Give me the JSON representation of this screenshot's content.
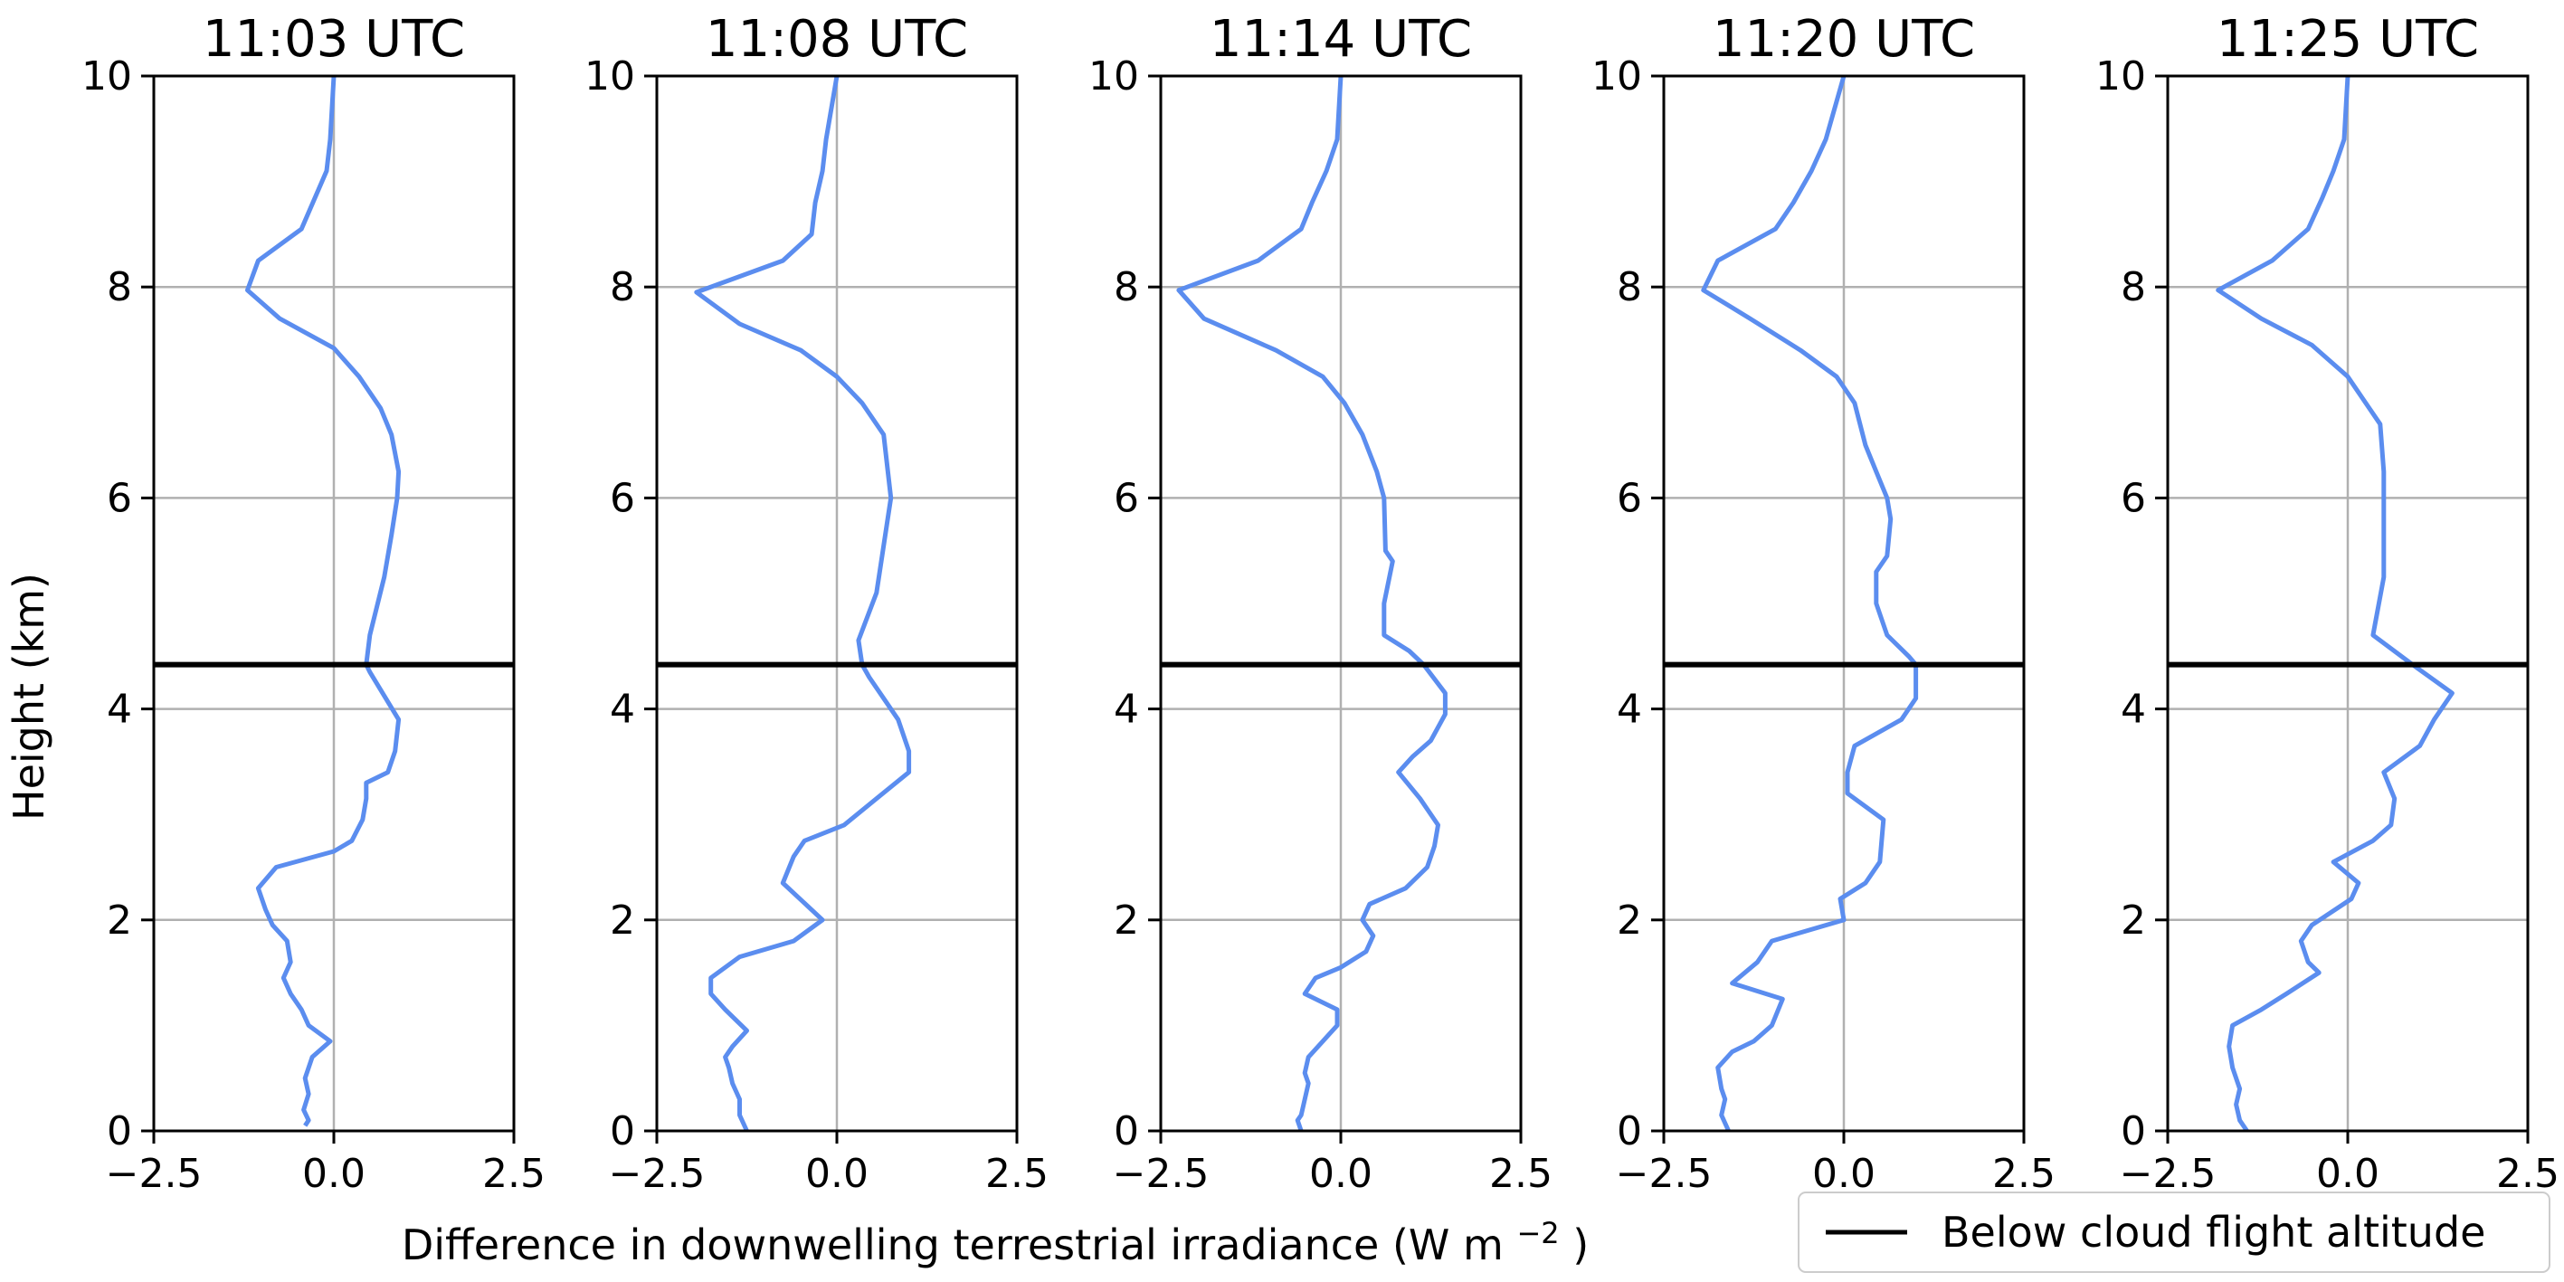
{
  "chart_data": {
    "type": "line",
    "xlabel_main": "Difference in downwelling terrestrial irradiance (W m",
    "xlabel_sup": "−2",
    "xlabel_close": ")",
    "ylabel": "Height (km)",
    "xlim": [
      -2.5,
      2.5
    ],
    "ylim": [
      0,
      10
    ],
    "xticks": [
      -2.5,
      0.0,
      2.5
    ],
    "xtick_labels": [
      "−2.5",
      "0.0",
      "2.5"
    ],
    "yticks": [
      0,
      2,
      4,
      6,
      8,
      10
    ],
    "ytick_labels": [
      "0",
      "2",
      "4",
      "6",
      "8",
      "10"
    ],
    "grid": true,
    "line_color": "#5b8def",
    "ref_color": "#000000",
    "grid_color": "#b0b0b0",
    "legend": {
      "label": "Below cloud flight altitude",
      "placement": "lower-right"
    },
    "panels": [
      {
        "title": "11:03 UTC",
        "cloud_altitude": 4.42,
        "profile": [
          [
            0.0,
            10.0
          ],
          [
            -0.05,
            9.4
          ],
          [
            -0.1,
            9.1
          ],
          [
            -0.45,
            8.55
          ],
          [
            -1.05,
            8.25
          ],
          [
            -1.2,
            7.97
          ],
          [
            -0.75,
            7.7
          ],
          [
            0.0,
            7.42
          ],
          [
            0.35,
            7.15
          ],
          [
            0.65,
            6.85
          ],
          [
            0.8,
            6.6
          ],
          [
            0.9,
            6.25
          ],
          [
            0.88,
            6.0
          ],
          [
            0.8,
            5.65
          ],
          [
            0.7,
            5.25
          ],
          [
            0.5,
            4.7
          ],
          [
            0.45,
            4.42
          ],
          [
            0.5,
            4.35
          ],
          [
            0.9,
            3.9
          ],
          [
            0.85,
            3.6
          ],
          [
            0.75,
            3.4
          ],
          [
            0.45,
            3.3
          ],
          [
            0.45,
            3.15
          ],
          [
            0.4,
            2.95
          ],
          [
            0.25,
            2.75
          ],
          [
            0.0,
            2.65
          ],
          [
            -0.8,
            2.5
          ],
          [
            -1.05,
            2.3
          ],
          [
            -0.95,
            2.1
          ],
          [
            -0.85,
            1.95
          ],
          [
            -0.65,
            1.8
          ],
          [
            -0.6,
            1.6
          ],
          [
            -0.7,
            1.45
          ],
          [
            -0.6,
            1.3
          ],
          [
            -0.45,
            1.15
          ],
          [
            -0.35,
            1.0
          ],
          [
            -0.05,
            0.85
          ],
          [
            -0.3,
            0.7
          ],
          [
            -0.4,
            0.5
          ],
          [
            -0.35,
            0.35
          ],
          [
            -0.42,
            0.2
          ],
          [
            -0.35,
            0.1
          ],
          [
            -0.4,
            0.05
          ]
        ]
      },
      {
        "title": "11:08 UTC",
        "cloud_altitude": 4.42,
        "profile": [
          [
            0.0,
            10.0
          ],
          [
            -0.15,
            9.4
          ],
          [
            -0.2,
            9.1
          ],
          [
            -0.3,
            8.8
          ],
          [
            -0.35,
            8.5
          ],
          [
            -0.75,
            8.25
          ],
          [
            -1.95,
            7.95
          ],
          [
            -1.35,
            7.65
          ],
          [
            -0.5,
            7.4
          ],
          [
            0.0,
            7.15
          ],
          [
            0.35,
            6.9
          ],
          [
            0.65,
            6.6
          ],
          [
            0.75,
            6.0
          ],
          [
            0.55,
            5.1
          ],
          [
            0.3,
            4.65
          ],
          [
            0.35,
            4.42
          ],
          [
            0.45,
            4.3
          ],
          [
            0.85,
            3.9
          ],
          [
            1.0,
            3.6
          ],
          [
            1.0,
            3.4
          ],
          [
            0.55,
            3.15
          ],
          [
            0.1,
            2.9
          ],
          [
            -0.45,
            2.75
          ],
          [
            -0.6,
            2.6
          ],
          [
            -0.75,
            2.35
          ],
          [
            -0.2,
            2.0
          ],
          [
            -0.6,
            1.8
          ],
          [
            -1.35,
            1.65
          ],
          [
            -1.75,
            1.45
          ],
          [
            -1.75,
            1.3
          ],
          [
            -1.55,
            1.15
          ],
          [
            -1.25,
            0.95
          ],
          [
            -1.45,
            0.8
          ],
          [
            -1.55,
            0.7
          ],
          [
            -1.5,
            0.6
          ],
          [
            -1.45,
            0.45
          ],
          [
            -1.35,
            0.3
          ],
          [
            -1.35,
            0.15
          ],
          [
            -1.25,
            0.0
          ]
        ]
      },
      {
        "title": "11:14 UTC",
        "cloud_altitude": 4.42,
        "profile": [
          [
            0.0,
            10.0
          ],
          [
            -0.05,
            9.4
          ],
          [
            -0.2,
            9.1
          ],
          [
            -0.4,
            8.8
          ],
          [
            -0.55,
            8.55
          ],
          [
            -1.15,
            8.25
          ],
          [
            -2.25,
            7.97
          ],
          [
            -1.9,
            7.7
          ],
          [
            -0.9,
            7.4
          ],
          [
            -0.25,
            7.15
          ],
          [
            0.05,
            6.9
          ],
          [
            0.3,
            6.6
          ],
          [
            0.5,
            6.25
          ],
          [
            0.6,
            6.0
          ],
          [
            0.62,
            5.5
          ],
          [
            0.72,
            5.4
          ],
          [
            0.6,
            5.0
          ],
          [
            0.6,
            4.7
          ],
          [
            0.95,
            4.55
          ],
          [
            1.15,
            4.42
          ],
          [
            1.45,
            4.15
          ],
          [
            1.45,
            3.95
          ],
          [
            1.25,
            3.7
          ],
          [
            1.0,
            3.55
          ],
          [
            0.8,
            3.4
          ],
          [
            1.1,
            3.15
          ],
          [
            1.35,
            2.9
          ],
          [
            1.3,
            2.7
          ],
          [
            1.2,
            2.5
          ],
          [
            0.9,
            2.3
          ],
          [
            0.4,
            2.15
          ],
          [
            0.3,
            2.0
          ],
          [
            0.45,
            1.85
          ],
          [
            0.35,
            1.7
          ],
          [
            0.0,
            1.55
          ],
          [
            -0.35,
            1.45
          ],
          [
            -0.5,
            1.3
          ],
          [
            -0.05,
            1.15
          ],
          [
            -0.05,
            1.0
          ],
          [
            -0.25,
            0.85
          ],
          [
            -0.45,
            0.7
          ],
          [
            -0.5,
            0.55
          ],
          [
            -0.45,
            0.45
          ],
          [
            -0.5,
            0.3
          ],
          [
            -0.55,
            0.15
          ],
          [
            -0.6,
            0.1
          ],
          [
            -0.55,
            0.0
          ]
        ]
      },
      {
        "title": "11:20 UTC",
        "cloud_altitude": 4.42,
        "profile": [
          [
            0.0,
            10.0
          ],
          [
            -0.25,
            9.4
          ],
          [
            -0.45,
            9.1
          ],
          [
            -0.7,
            8.8
          ],
          [
            -0.95,
            8.55
          ],
          [
            -1.75,
            8.25
          ],
          [
            -1.95,
            7.97
          ],
          [
            -1.3,
            7.7
          ],
          [
            -0.6,
            7.4
          ],
          [
            -0.1,
            7.15
          ],
          [
            0.15,
            6.9
          ],
          [
            0.3,
            6.5
          ],
          [
            0.45,
            6.25
          ],
          [
            0.6,
            6.0
          ],
          [
            0.65,
            5.8
          ],
          [
            0.6,
            5.45
          ],
          [
            0.45,
            5.3
          ],
          [
            0.45,
            5.0
          ],
          [
            0.6,
            4.7
          ],
          [
            0.9,
            4.5
          ],
          [
            1.0,
            4.42
          ],
          [
            1.0,
            4.1
          ],
          [
            0.8,
            3.9
          ],
          [
            0.15,
            3.65
          ],
          [
            0.05,
            3.4
          ],
          [
            0.05,
            3.2
          ],
          [
            0.55,
            2.95
          ],
          [
            0.5,
            2.55
          ],
          [
            0.3,
            2.35
          ],
          [
            -0.05,
            2.2
          ],
          [
            0.0,
            2.0
          ],
          [
            -1.0,
            1.8
          ],
          [
            -1.2,
            1.6
          ],
          [
            -1.55,
            1.4
          ],
          [
            -0.85,
            1.25
          ],
          [
            -1.0,
            1.0
          ],
          [
            -1.25,
            0.85
          ],
          [
            -1.55,
            0.75
          ],
          [
            -1.75,
            0.6
          ],
          [
            -1.7,
            0.4
          ],
          [
            -1.65,
            0.3
          ],
          [
            -1.7,
            0.15
          ],
          [
            -1.6,
            0.0
          ]
        ]
      },
      {
        "title": "11:25 UTC",
        "cloud_altitude": 4.42,
        "profile": [
          [
            0.0,
            10.0
          ],
          [
            -0.05,
            9.4
          ],
          [
            -0.2,
            9.1
          ],
          [
            -0.35,
            8.85
          ],
          [
            -0.55,
            8.55
          ],
          [
            -1.05,
            8.25
          ],
          [
            -1.8,
            7.97
          ],
          [
            -1.2,
            7.7
          ],
          [
            -0.5,
            7.45
          ],
          [
            0.0,
            7.15
          ],
          [
            0.25,
            6.9
          ],
          [
            0.45,
            6.7
          ],
          [
            0.5,
            6.25
          ],
          [
            0.5,
            5.8
          ],
          [
            0.5,
            5.25
          ],
          [
            0.35,
            4.7
          ],
          [
            0.9,
            4.42
          ],
          [
            1.45,
            4.15
          ],
          [
            1.2,
            3.9
          ],
          [
            1.0,
            3.65
          ],
          [
            0.5,
            3.4
          ],
          [
            0.65,
            3.15
          ],
          [
            0.6,
            2.9
          ],
          [
            0.35,
            2.75
          ],
          [
            -0.2,
            2.55
          ],
          [
            0.15,
            2.35
          ],
          [
            0.05,
            2.2
          ],
          [
            -0.5,
            1.95
          ],
          [
            -0.65,
            1.8
          ],
          [
            -0.55,
            1.6
          ],
          [
            -0.4,
            1.5
          ],
          [
            -0.85,
            1.3
          ],
          [
            -1.2,
            1.15
          ],
          [
            -1.6,
            1.0
          ],
          [
            -1.65,
            0.8
          ],
          [
            -1.6,
            0.6
          ],
          [
            -1.5,
            0.4
          ],
          [
            -1.55,
            0.25
          ],
          [
            -1.5,
            0.1
          ],
          [
            -1.4,
            0.0
          ]
        ]
      }
    ]
  }
}
